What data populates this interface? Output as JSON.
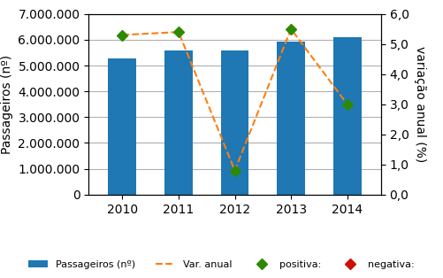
{
  "chart_data": {
    "type": "bar",
    "categories": [
      "2010",
      "2011",
      "2012",
      "2013",
      "2014"
    ],
    "series": [
      {
        "name": "Passageiros (nº)",
        "type": "bar",
        "values": [
          5280000,
          5600000,
          5600000,
          5920000,
          6100000
        ]
      },
      {
        "name": "Var. anual",
        "type": "line",
        "line_style": "dashed",
        "axis": "y2",
        "values": [
          5.3,
          5.4,
          0.8,
          5.5,
          3.0
        ]
      },
      {
        "name": "positiva:",
        "type": "scatter",
        "marker": "diamond",
        "color": "#2d8a00",
        "axis": "y2",
        "values": [
          5.3,
          5.4,
          0.8,
          5.5,
          3.0
        ]
      },
      {
        "name": "negativa:",
        "type": "scatter",
        "marker": "diamond",
        "color": "#cc1100",
        "axis": "y2",
        "values": [
          null,
          null,
          null,
          null,
          null
        ]
      }
    ],
    "ylabel": "Passageiros (nº)",
    "y2label": "variação anual (%)",
    "ylim": [
      0,
      7000000
    ],
    "yticks": [
      0,
      {
        "value": 1000000,
        "label": "1.000.000"
      },
      {
        "value": 2000000,
        "label": "2.000.000"
      },
      {
        "value": 3000000,
        "label": "3.000.000"
      },
      {
        "value": 4000000,
        "label": "4.000.000"
      },
      {
        "value": 5000000,
        "label": "5.000.000"
      },
      {
        "value": 6000000,
        "label": "6.000.000"
      },
      {
        "value": 7000000,
        "label": "7.000.000"
      }
    ],
    "y2lim": [
      0,
      6
    ],
    "y2ticks": [
      {
        "value": 0,
        "label": "0,0"
      },
      {
        "value": 1,
        "label": "1,0"
      },
      {
        "value": 2,
        "label": "2,0"
      },
      {
        "value": 3,
        "label": "3,0"
      },
      {
        "value": 4,
        "label": "4,0"
      },
      {
        "value": 5,
        "label": "5,0"
      },
      {
        "value": 6,
        "label": "6,0"
      }
    ],
    "grid": true,
    "legend": "lower center"
  }
}
